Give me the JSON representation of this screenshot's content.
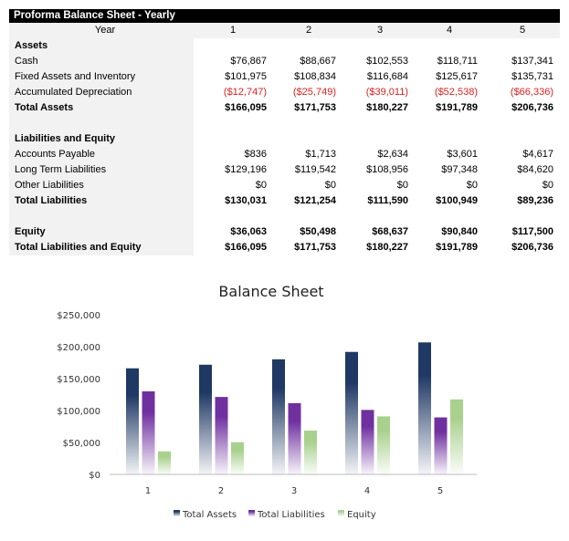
{
  "table": {
    "title": "Proforma Balance Sheet - Yearly",
    "year_label": "Year",
    "years": [
      "1",
      "2",
      "3",
      "4",
      "5"
    ],
    "rows": [
      {
        "label": "Assets",
        "bold": true,
        "values": []
      },
      {
        "label": "Cash",
        "values": [
          "$76,867",
          "$88,667",
          "$102,553",
          "$118,711",
          "$137,341"
        ]
      },
      {
        "label": "Fixed Assets and Inventory",
        "values": [
          "$101,975",
          "$108,834",
          "$116,684",
          "$125,617",
          "$135,731"
        ]
      },
      {
        "label": "Accumulated Depreciation",
        "negative": true,
        "values": [
          "($12,747)",
          "($25,749)",
          "($39,011)",
          "($52,538)",
          "($66,336)"
        ]
      },
      {
        "label": "Total Assets",
        "bold": true,
        "values": [
          "$166,095",
          "$171,753",
          "$180,227",
          "$191,789",
          "$206,736"
        ]
      },
      {
        "label": "",
        "values": []
      },
      {
        "label": "Liabilities and Equity",
        "bold": true,
        "values": []
      },
      {
        "label": "Accounts Payable",
        "values": [
          "$836",
          "$1,713",
          "$2,634",
          "$3,601",
          "$4,617"
        ]
      },
      {
        "label": "Long Term Liabilities",
        "values": [
          "$129,196",
          "$119,542",
          "$108,956",
          "$97,348",
          "$84,620"
        ]
      },
      {
        "label": "Other Liabilities",
        "values": [
          "$0",
          "$0",
          "$0",
          "$0",
          "$0"
        ]
      },
      {
        "label": "Total Liabilities",
        "bold": true,
        "values": [
          "$130,031",
          "$121,254",
          "$111,590",
          "$100,949",
          "$89,236"
        ]
      },
      {
        "label": "",
        "values": []
      },
      {
        "label": "Equity",
        "bold": true,
        "values": [
          "$36,063",
          "$50,498",
          "$68,637",
          "$90,840",
          "$117,500"
        ]
      },
      {
        "label": "Total Liabilities and Equity",
        "bold": true,
        "values": [
          "$166,095",
          "$171,753",
          "$180,227",
          "$191,789",
          "$206,736"
        ]
      }
    ]
  },
  "chart_data": {
    "type": "bar",
    "title": "Balance Sheet",
    "categories": [
      "1",
      "2",
      "3",
      "4",
      "5"
    ],
    "ylim": [
      0,
      250000
    ],
    "yticks": [
      "$0",
      "$50,000",
      "$100,000",
      "$150,000",
      "$200,000",
      "$250,000"
    ],
    "grid": false,
    "legend": "bottom",
    "series": [
      {
        "name": "Total Assets",
        "color": "#1f3864",
        "values": [
          166095,
          171753,
          180227,
          191789,
          206736
        ]
      },
      {
        "name": "Total Liabilities",
        "color": "#7030a0",
        "values": [
          130031,
          121254,
          111590,
          100949,
          89236
        ]
      },
      {
        "name": "Equity",
        "color": "#a9d18e",
        "values": [
          36063,
          50498,
          68637,
          90840,
          117500
        ]
      }
    ]
  }
}
